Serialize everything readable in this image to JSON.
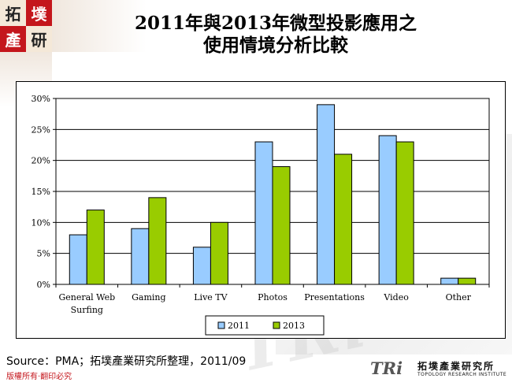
{
  "logo": {
    "chars": [
      "拓",
      "墣",
      "產",
      "研"
    ]
  },
  "watermark": "TRi",
  "title_lines": [
    "2011年與2013年微型投影應用之",
    "使用情境分析比較"
  ],
  "chart_data": {
    "type": "bar",
    "title": "2011年與2013年微型投影應用之使用情境分析比較",
    "categories": [
      "General Web Surfing",
      "Gaming",
      "Live TV",
      "Photos",
      "Presentations",
      "Video",
      "Other"
    ],
    "category_lines": [
      [
        "General Web",
        "Surfing"
      ],
      [
        "Gaming"
      ],
      [
        "Live TV"
      ],
      [
        "Photos"
      ],
      [
        "Presentations"
      ],
      [
        "Video"
      ],
      [
        "Other"
      ]
    ],
    "series": [
      {
        "name": "2011",
        "values": [
          8,
          9,
          6,
          23,
          29,
          24,
          1
        ],
        "color": "#99ccff"
      },
      {
        "name": "2013",
        "values": [
          12,
          14,
          10,
          19,
          21,
          23,
          1
        ],
        "color": "#99cc00"
      }
    ],
    "ylim": [
      0,
      30
    ],
    "yticks": [
      "0%",
      "5%",
      "10%",
      "15%",
      "20%",
      "25%",
      "30%"
    ],
    "grid": true,
    "legend_position": "bottom"
  },
  "source_text": "Source：PMA；拓墣產業研究所整理，2011/09",
  "footer_text": "版權所有‧翻印必究",
  "brand": {
    "mark": "TRi",
    "name": "拓墣產業研究所",
    "subtitle": "TOPOLOGY RESEARCH INSTITUTE"
  }
}
